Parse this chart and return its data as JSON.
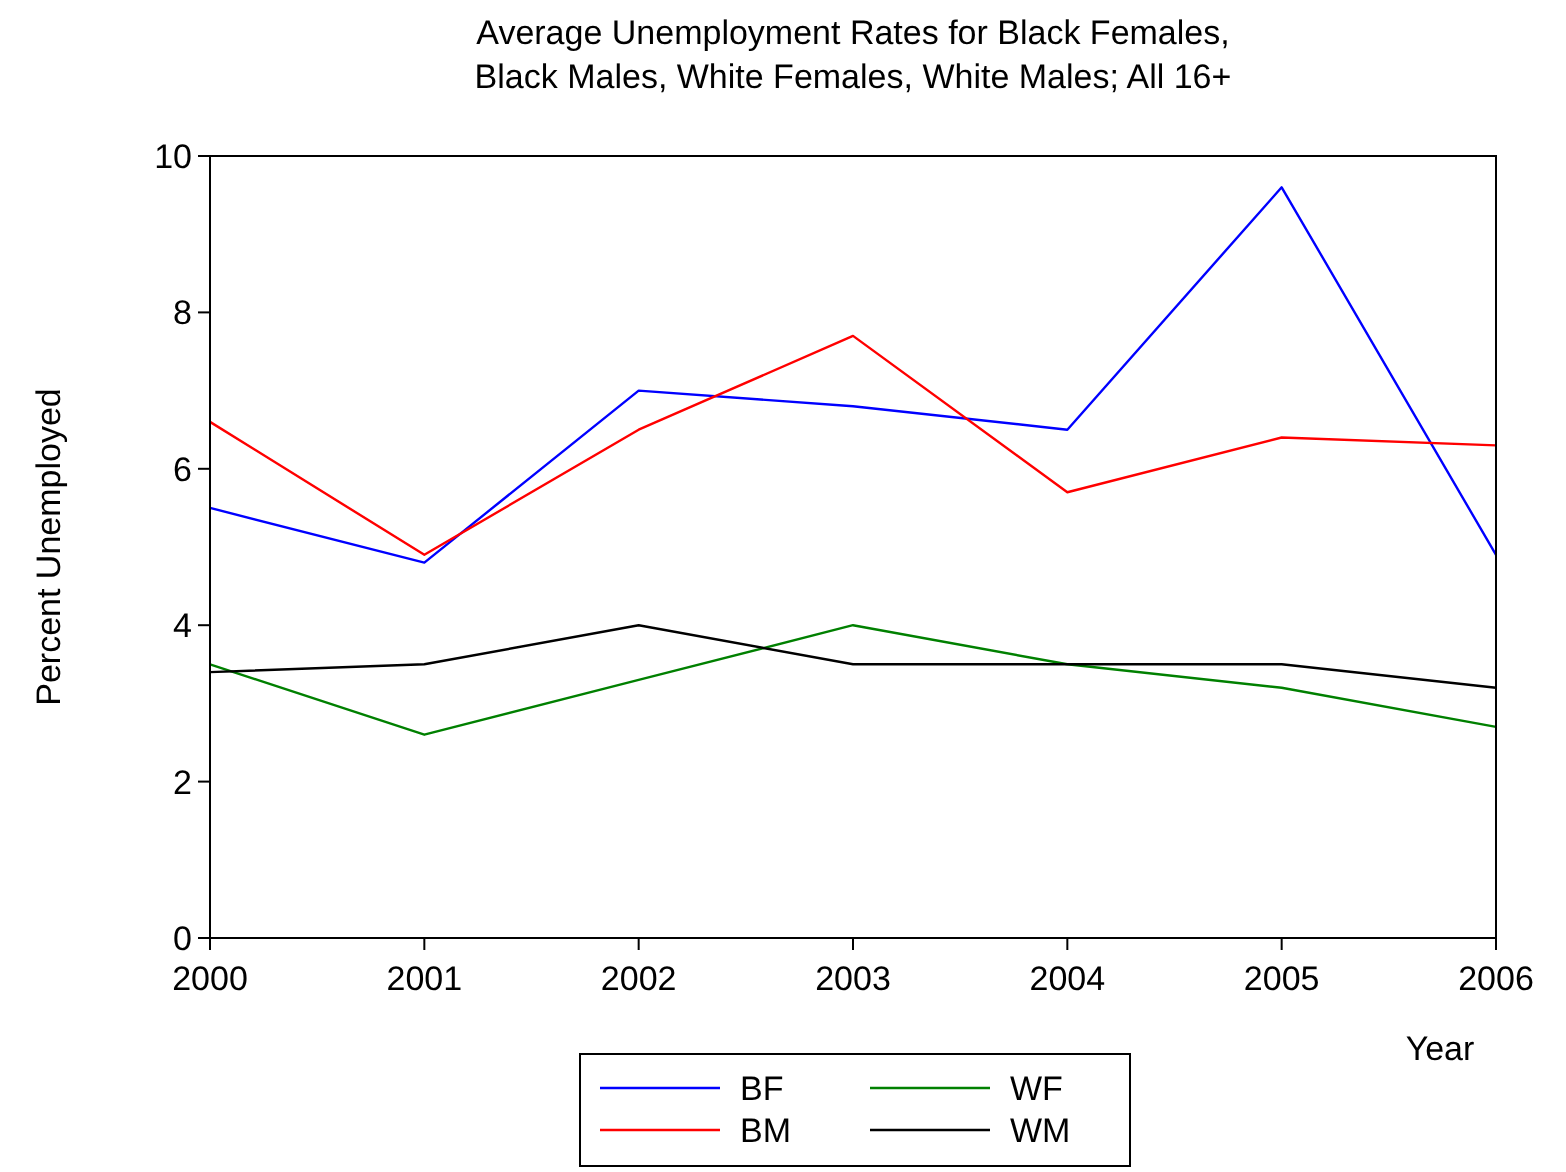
{
  "chart_data": {
    "type": "line",
    "title": "Average Unemployment Rates for Black Females,\nBlack Males, White Females, White Males; All 16+",
    "xlabel": "Year",
    "ylabel": "Percent Unemployed",
    "x": [
      2000,
      2001,
      2002,
      2003,
      2004,
      2005,
      2006
    ],
    "xlim": [
      2000,
      2006
    ],
    "xticks": [
      2000,
      2001,
      2002,
      2003,
      2004,
      2005,
      2006
    ],
    "ylim": [
      0,
      10
    ],
    "yticks": [
      0,
      2,
      4,
      6,
      8,
      10
    ],
    "grid": false,
    "legend": "bottom",
    "marker": "none",
    "line_style": "solid",
    "series": [
      {
        "name": "BF",
        "color": "#0000ff",
        "values": [
          5.5,
          4.8,
          7.0,
          6.8,
          6.5,
          9.6,
          4.9
        ]
      },
      {
        "name": "BM",
        "color": "#ff0000",
        "values": [
          6.6,
          4.9,
          6.5,
          7.7,
          5.7,
          6.4,
          6.3
        ]
      },
      {
        "name": "WF",
        "color": "#008000",
        "values": [
          3.5,
          2.6,
          3.3,
          4.0,
          3.5,
          3.2,
          2.7
        ]
      },
      {
        "name": "WM",
        "color": "#000000",
        "values": [
          3.4,
          3.5,
          4.0,
          3.5,
          3.5,
          3.5,
          3.2
        ]
      }
    ]
  }
}
